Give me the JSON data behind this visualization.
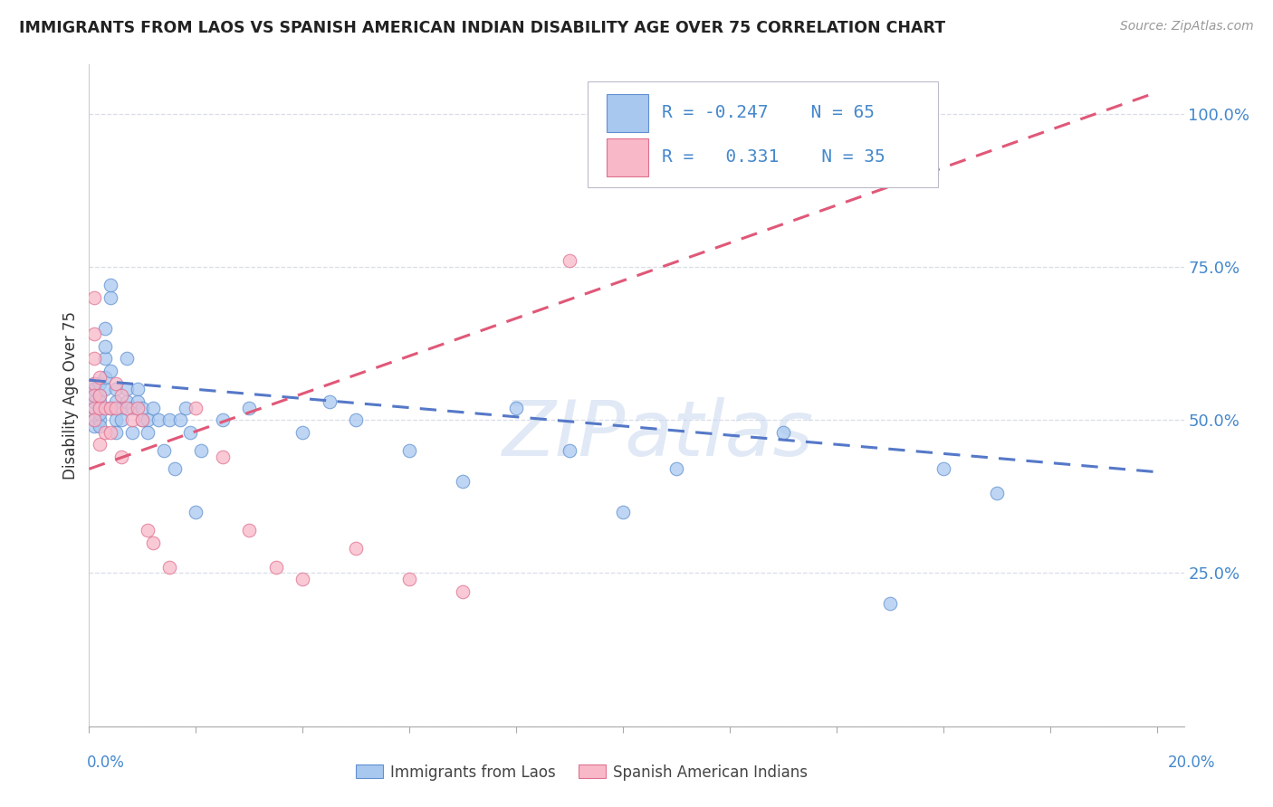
{
  "title": "IMMIGRANTS FROM LAOS VS SPANISH AMERICAN INDIAN DISABILITY AGE OVER 75 CORRELATION CHART",
  "source": "Source: ZipAtlas.com",
  "ylabel": "Disability Age Over 75",
  "watermark": "ZIPatlas",
  "legend_blue_r": "-0.247",
  "legend_blue_n": "65",
  "legend_pink_r": "0.331",
  "legend_pink_n": "35",
  "color_blue_fill": "#A8C8F0",
  "color_blue_edge": "#6090D0",
  "color_pink_fill": "#F8B8C8",
  "color_pink_edge": "#E07090",
  "color_blue_line": "#5578C8",
  "color_pink_line": "#E05878",
  "blue_scatter_x": [
    0.001,
    0.001,
    0.001,
    0.001,
    0.001,
    0.001,
    0.001,
    0.002,
    0.002,
    0.002,
    0.002,
    0.002,
    0.002,
    0.002,
    0.003,
    0.003,
    0.003,
    0.003,
    0.003,
    0.004,
    0.004,
    0.004,
    0.004,
    0.005,
    0.005,
    0.005,
    0.005,
    0.006,
    0.006,
    0.007,
    0.007,
    0.007,
    0.008,
    0.008,
    0.009,
    0.009,
    0.01,
    0.01,
    0.011,
    0.011,
    0.012,
    0.013,
    0.014,
    0.015,
    0.016,
    0.017,
    0.018,
    0.019,
    0.02,
    0.021,
    0.025,
    0.03,
    0.04,
    0.045,
    0.05,
    0.06,
    0.07,
    0.08,
    0.09,
    0.1,
    0.11,
    0.13,
    0.15,
    0.16,
    0.17
  ],
  "blue_scatter_y": [
    0.52,
    0.54,
    0.56,
    0.5,
    0.53,
    0.49,
    0.55,
    0.52,
    0.5,
    0.54,
    0.56,
    0.53,
    0.49,
    0.51,
    0.55,
    0.57,
    0.6,
    0.62,
    0.65,
    0.7,
    0.72,
    0.58,
    0.52,
    0.55,
    0.5,
    0.48,
    0.53,
    0.52,
    0.5,
    0.55,
    0.53,
    0.6,
    0.52,
    0.48,
    0.55,
    0.53,
    0.5,
    0.52,
    0.5,
    0.48,
    0.52,
    0.5,
    0.45,
    0.5,
    0.42,
    0.5,
    0.52,
    0.48,
    0.35,
    0.45,
    0.5,
    0.52,
    0.48,
    0.53,
    0.5,
    0.45,
    0.4,
    0.52,
    0.45,
    0.35,
    0.42,
    0.48,
    0.2,
    0.42,
    0.38
  ],
  "pink_scatter_x": [
    0.001,
    0.001,
    0.001,
    0.001,
    0.001,
    0.001,
    0.001,
    0.002,
    0.002,
    0.002,
    0.002,
    0.003,
    0.003,
    0.004,
    0.004,
    0.005,
    0.005,
    0.006,
    0.006,
    0.007,
    0.008,
    0.009,
    0.01,
    0.011,
    0.012,
    0.015,
    0.02,
    0.025,
    0.03,
    0.035,
    0.04,
    0.05,
    0.06,
    0.07,
    0.09
  ],
  "pink_scatter_y": [
    0.56,
    0.6,
    0.64,
    0.52,
    0.5,
    0.54,
    0.7,
    0.52,
    0.54,
    0.57,
    0.46,
    0.52,
    0.48,
    0.52,
    0.48,
    0.52,
    0.56,
    0.54,
    0.44,
    0.52,
    0.5,
    0.52,
    0.5,
    0.32,
    0.3,
    0.26,
    0.52,
    0.44,
    0.32,
    0.26,
    0.24,
    0.29,
    0.24,
    0.22,
    0.76
  ],
  "xlim": [
    0.0,
    0.205
  ],
  "ylim": [
    0.0,
    1.08
  ],
  "ytick_vals": [
    0.0,
    0.25,
    0.5,
    0.75,
    1.0
  ],
  "ytick_labels": [
    "",
    "25.0%",
    "50.0%",
    "75.0%",
    "100.0%"
  ],
  "xtick_vals": [
    0.0,
    0.02,
    0.04,
    0.06,
    0.08,
    0.1,
    0.12,
    0.14,
    0.16,
    0.18,
    0.2
  ],
  "blue_line_x": [
    0.0,
    0.2
  ],
  "blue_line_y": [
    0.565,
    0.415
  ],
  "pink_line_x": [
    0.0,
    0.2
  ],
  "pink_line_y": [
    0.42,
    1.035
  ],
  "grid_color": "#D8DDE8",
  "title_color": "#222222",
  "source_color": "#999999",
  "axis_label_color": "#333333",
  "right_tick_color": "#4488CC"
}
